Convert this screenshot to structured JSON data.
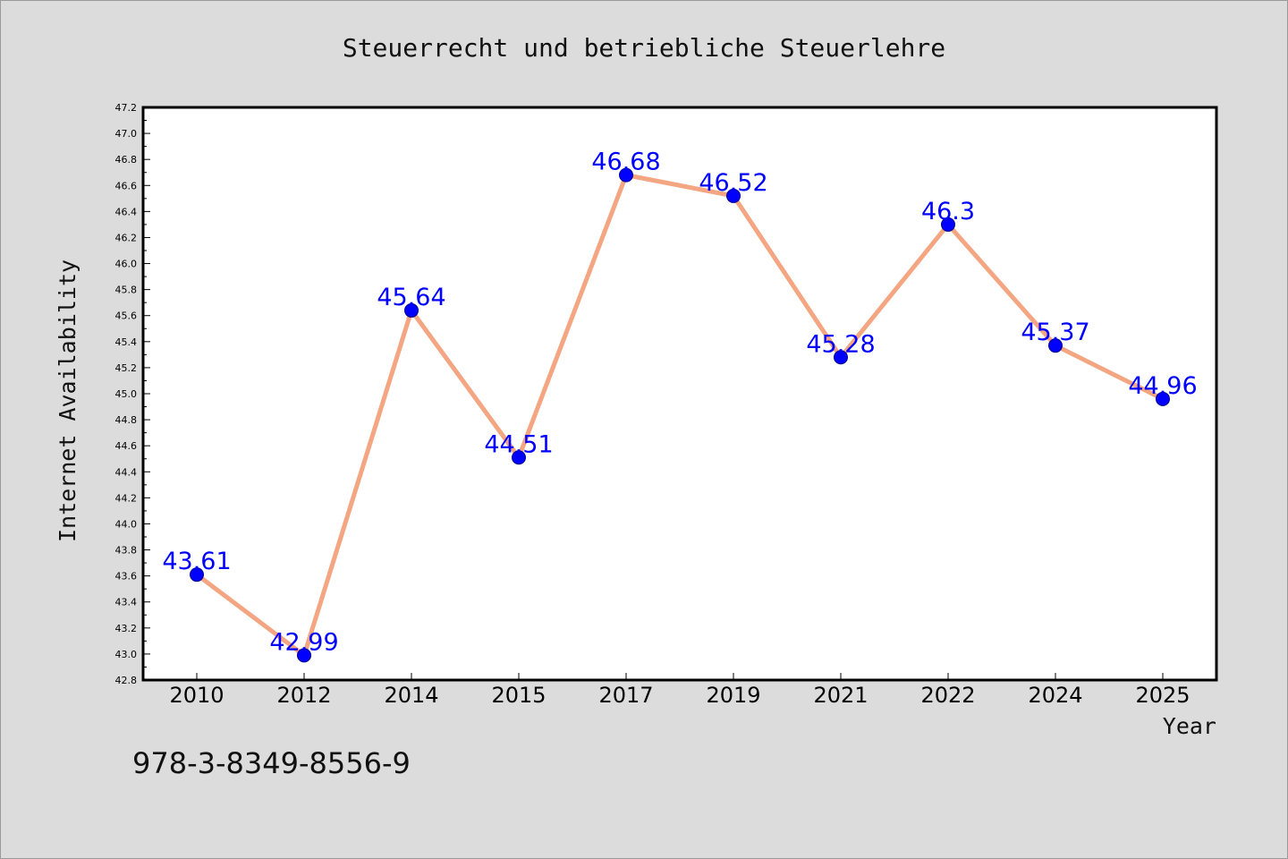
{
  "chart_data": {
    "type": "line",
    "title": "Steuerrecht und betriebliche Steuerlehre",
    "xlabel": "Year",
    "ylabel": "Internet Availability",
    "categories": [
      "2010",
      "2012",
      "2014",
      "2015",
      "2017",
      "2019",
      "2021",
      "2022",
      "2024",
      "2025"
    ],
    "series": [
      {
        "values": [
          43.61,
          42.99,
          45.64,
          44.51,
          46.68,
          46.52,
          45.28,
          46.3,
          45.37,
          44.96
        ],
        "data_labels": [
          "43.61",
          "42.99",
          "45.64",
          "44.51",
          "46.68",
          "46.52",
          "45.28",
          "46.3",
          "45.37",
          "44.96"
        ],
        "line_color": "#f4a582",
        "marker_color": "#0000ff"
      }
    ],
    "ylim": [
      42.8,
      47.2
    ],
    "yticks": [
      "42.8",
      "43.0",
      "43.2",
      "43.4",
      "43.6",
      "43.8",
      "44.0",
      "44.2",
      "44.4",
      "44.6",
      "44.8",
      "45.0",
      "45.2",
      "45.4",
      "45.6",
      "45.8",
      "46.0",
      "46.2",
      "46.4",
      "46.6",
      "46.8",
      "47.0",
      "47.2"
    ],
    "grid": false,
    "legend": "none"
  },
  "footer": {
    "isbn": "978-3-8349-8556-9"
  },
  "colors": {
    "background": "#dcdcdc",
    "plot_background": "#ffffff",
    "label_color": "#0000ff"
  }
}
